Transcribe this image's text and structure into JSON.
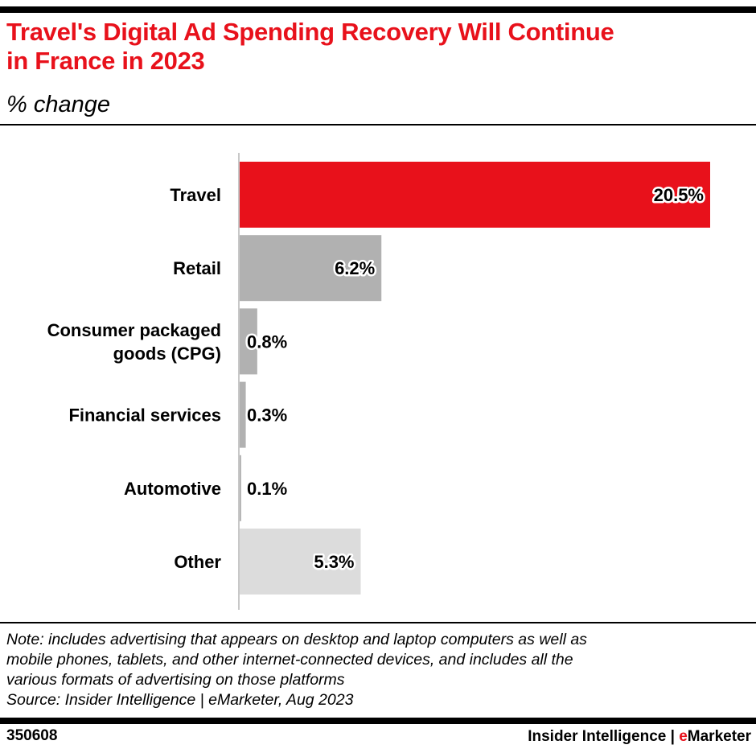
{
  "header": {
    "title_line1": "Travel's Digital Ad Spending Recovery Will Continue",
    "title_line2": "in France in 2023",
    "subtitle": "% change"
  },
  "footer": {
    "note_line1": "Note: includes advertising that appears on desktop and laptop computers as well as",
    "note_line2": "mobile phones, tablets, and other internet-connected devices, and includes all the",
    "note_line3": "various formats of advertising on those platforms",
    "source": "Source: Insider Intelligence | eMarketer, Aug 2023",
    "chart_id": "350608",
    "brand_prefix": "Insider Intelligence | ",
    "brand_e": "e",
    "brand_suffix": "Marketer"
  },
  "colors": {
    "accent": "#e8111b",
    "retail": "#b1b1b1",
    "other": "#dcdcdc",
    "axis": "#c8c8c8"
  },
  "chart_data": {
    "type": "bar",
    "orientation": "horizontal",
    "title": "Travel's Digital Ad Spending Recovery Will Continue in France in 2023",
    "subtitle": "% change",
    "xlabel": "",
    "ylabel": "",
    "categories": [
      [
        "Travel"
      ],
      [
        "Retail"
      ],
      [
        "Consumer packaged",
        "goods (CPG)"
      ],
      [
        "Financial services"
      ],
      [
        "Automotive"
      ],
      [
        "Other"
      ]
    ],
    "values": [
      20.5,
      6.2,
      0.8,
      0.3,
      0.1,
      5.3
    ],
    "labels": [
      "20.5%",
      "6.2%",
      "0.8%",
      "0.3%",
      "0.1%",
      "5.3%"
    ],
    "bar_colors": [
      "#e8111b",
      "#b1b1b1",
      "#b1b1b1",
      "#b1b1b1",
      "#b1b1b1",
      "#dcdcdc"
    ],
    "xlim": [
      0,
      20.5
    ],
    "grid": false,
    "legend": "none"
  }
}
